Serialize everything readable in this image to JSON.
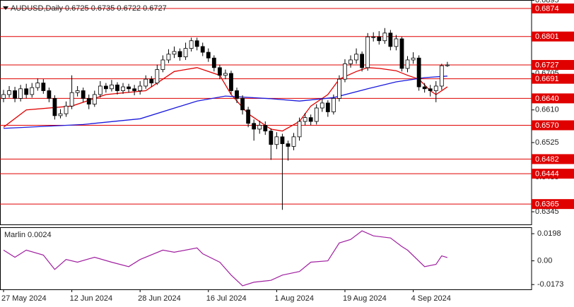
{
  "chart_data": [
    {
      "type": "candlestick",
      "title": "AUDUSD,Daily  0.6725 0.6735 0.6722 0.6727",
      "categories": [
        "27 May 2024",
        null,
        null,
        null,
        null,
        null,
        null,
        null,
        null,
        null,
        null,
        null,
        "12 Jun 2024",
        null,
        null,
        null,
        null,
        null,
        null,
        null,
        null,
        null,
        null,
        null,
        "28 Jun 2024",
        null,
        null,
        null,
        null,
        null,
        null,
        null,
        null,
        null,
        null,
        null,
        "16 Jul 2024",
        null,
        null,
        null,
        null,
        null,
        null,
        null,
        null,
        null,
        null,
        null,
        "1 Aug 2024",
        null,
        null,
        null,
        null,
        null,
        null,
        null,
        null,
        null,
        null,
        null,
        "19 Aug 2024",
        null,
        null,
        null,
        null,
        null,
        null,
        null,
        null,
        null,
        null,
        null,
        "4 Sep 2024",
        null,
        null,
        null,
        null,
        null,
        null
      ],
      "open": [
        0.664,
        0.665,
        0.666,
        0.664,
        0.6665,
        0.665,
        0.6668,
        0.668,
        0.666,
        0.664,
        0.6595,
        0.66,
        0.662,
        0.6655,
        0.666,
        0.664,
        0.6625,
        0.665,
        0.6672,
        0.6665,
        0.6675,
        0.666,
        0.667,
        0.6665,
        0.666,
        0.6672,
        0.669,
        0.668,
        0.6715,
        0.674,
        0.6755,
        0.6762,
        0.6748,
        0.677,
        0.679,
        0.6775,
        0.676,
        0.6745,
        0.672,
        0.67,
        0.6705,
        0.666,
        0.664,
        0.661,
        0.6575,
        0.656,
        0.657,
        0.6555,
        0.652,
        0.654,
        0.6522,
        0.6515,
        0.654,
        0.658,
        0.659,
        0.658,
        0.6615,
        0.6628,
        0.6605,
        0.664,
        0.669,
        0.673,
        0.674,
        0.6755,
        0.672,
        0.68,
        0.68,
        0.679,
        0.681,
        0.6775,
        0.6795,
        0.6718,
        0.674,
        0.6745,
        0.667,
        0.6665,
        0.666,
        0.6672,
        0.6725
      ],
      "high": [
        0.6662,
        0.6672,
        0.667,
        0.6675,
        0.6678,
        0.668,
        0.6692,
        0.669,
        0.6668,
        0.6648,
        0.6612,
        0.6632,
        0.67,
        0.6672,
        0.6668,
        0.665,
        0.666,
        0.6685,
        0.668,
        0.6688,
        0.6682,
        0.668,
        0.6678,
        0.6675,
        0.6685,
        0.67,
        0.6698,
        0.6728,
        0.6752,
        0.6768,
        0.6775,
        0.677,
        0.6785,
        0.6798,
        0.6798,
        0.6785,
        0.677,
        0.6752,
        0.6728,
        0.6715,
        0.6712,
        0.6668,
        0.6648,
        0.6618,
        0.6585,
        0.6582,
        0.658,
        0.6562,
        0.6552,
        0.6548,
        0.653,
        0.655,
        0.659,
        0.6602,
        0.6598,
        0.6625,
        0.664,
        0.6635,
        0.665,
        0.67,
        0.6742,
        0.6752,
        0.677,
        0.6762,
        0.681,
        0.6812,
        0.6815,
        0.6823,
        0.6818,
        0.6805,
        0.68,
        0.675,
        0.676,
        0.6752,
        0.668,
        0.6675,
        0.6685,
        0.673,
        0.6735
      ],
      "low": [
        0.663,
        0.6642,
        0.663,
        0.6632,
        0.664,
        0.6642,
        0.666,
        0.6652,
        0.663,
        0.6585,
        0.6588,
        0.6592,
        0.6612,
        0.6645,
        0.663,
        0.6612,
        0.6618,
        0.6642,
        0.6655,
        0.6658,
        0.665,
        0.6652,
        0.6655,
        0.6648,
        0.665,
        0.6665,
        0.667,
        0.6675,
        0.6708,
        0.6732,
        0.6745,
        0.6738,
        0.674,
        0.6762,
        0.6765,
        0.675,
        0.6735,
        0.671,
        0.669,
        0.669,
        0.665,
        0.6628,
        0.6598,
        0.6565,
        0.653,
        0.6548,
        0.6545,
        0.648,
        0.6508,
        0.635,
        0.6478,
        0.6505,
        0.653,
        0.657,
        0.657,
        0.6572,
        0.6605,
        0.6592,
        0.6598,
        0.6632,
        0.6682,
        0.672,
        0.673,
        0.671,
        0.6712,
        0.6788,
        0.678,
        0.6782,
        0.6765,
        0.6765,
        0.671,
        0.6708,
        0.673,
        0.666,
        0.6655,
        0.6645,
        0.663,
        0.6662,
        0.6722
      ],
      "close": [
        0.665,
        0.666,
        0.664,
        0.6665,
        0.665,
        0.6668,
        0.668,
        0.666,
        0.664,
        0.6595,
        0.66,
        0.662,
        0.6655,
        0.666,
        0.664,
        0.6625,
        0.665,
        0.6672,
        0.6665,
        0.6675,
        0.666,
        0.667,
        0.6665,
        0.666,
        0.6672,
        0.669,
        0.668,
        0.6715,
        0.674,
        0.6755,
        0.6762,
        0.6748,
        0.677,
        0.679,
        0.6775,
        0.676,
        0.6745,
        0.672,
        0.67,
        0.6705,
        0.666,
        0.664,
        0.661,
        0.6575,
        0.656,
        0.657,
        0.6555,
        0.652,
        0.654,
        0.6522,
        0.6515,
        0.654,
        0.658,
        0.659,
        0.658,
        0.6615,
        0.6628,
        0.6605,
        0.664,
        0.669,
        0.673,
        0.674,
        0.6755,
        0.672,
        0.68,
        0.68,
        0.679,
        0.681,
        0.6775,
        0.6795,
        0.6718,
        0.674,
        0.6745,
        0.667,
        0.6665,
        0.666,
        0.6672,
        0.6725,
        0.6727
      ],
      "up_color": "#ffffff",
      "down_color": "#000000",
      "lines": [
        {
          "color": "#e00000",
          "x": [
            0,
            4,
            12,
            18,
            25,
            30,
            34,
            38,
            40,
            43,
            47,
            49,
            52,
            54,
            57,
            59,
            62,
            64,
            66,
            69,
            71,
            73,
            75,
            76,
            78
          ],
          "values": [
            0.6565,
            0.661,
            0.662,
            0.665,
            0.666,
            0.671,
            0.672,
            0.67,
            0.665,
            0.66,
            0.656,
            0.6555,
            0.658,
            0.662,
            0.665,
            0.669,
            0.671,
            0.672,
            0.6718,
            0.6712,
            0.67,
            0.669,
            0.666,
            0.665,
            0.667
          ]
        },
        {
          "color": "#1a1adc",
          "x": [
            0,
            14,
            24,
            34,
            39,
            47,
            52,
            58,
            64,
            69,
            74,
            78
          ],
          "values": [
            0.6562,
            0.6572,
            0.6587,
            0.6633,
            0.6646,
            0.6639,
            0.6633,
            0.6642,
            0.6665,
            0.6683,
            0.6694,
            0.6698
          ]
        }
      ],
      "levels": [
        {
          "value": 0.6874,
          "label": "0.6874"
        },
        {
          "value": 0.6801,
          "label": "0.6801"
        },
        {
          "value": 0.6727,
          "label": "0.6727"
        },
        {
          "value": 0.6691,
          "label": "0.6691"
        },
        {
          "value": 0.664,
          "label": "0.6640"
        },
        {
          "value": 0.657,
          "label": "0.6570"
        },
        {
          "value": 0.6482,
          "label": "0.6482"
        },
        {
          "value": 0.6444,
          "label": "0.6444"
        },
        {
          "value": 0.6365,
          "label": "0.6365"
        }
      ],
      "level_color": "#e00000",
      "xlim": [
        -0.62,
        92.8
      ],
      "ylim": [
        0.6312,
        0.6896
      ],
      "yticks": [
        0.6895,
        0.6705,
        {
          "value": 0.661,
          "label": "0.6610"
        },
        0.6525,
        0.6435,
        0.6345
      ]
    },
    {
      "type": "line",
      "title": "Marlin 0.0024",
      "color": "#a020a0",
      "x": [
        0,
        2,
        4,
        7,
        9,
        11,
        13,
        16,
        19,
        22,
        24,
        28,
        30,
        34,
        35,
        38,
        40,
        42,
        44,
        47,
        49,
        52,
        54,
        57,
        59,
        61,
        63,
        65,
        68,
        70,
        71,
        74,
        76,
        77,
        78
      ],
      "values": [
        0.0078,
        0.0026,
        0.0078,
        0.0042,
        -0.0063,
        0.001,
        -0.001,
        0.0026,
        -0.001,
        -0.0042,
        0.001,
        0.0078,
        0.0063,
        0.0094,
        0.0052,
        -0.001,
        -0.0104,
        -0.0182,
        -0.0156,
        -0.0142,
        -0.0104,
        -0.0078,
        -0.001,
        0,
        0.013,
        0.0156,
        0.0219,
        0.0182,
        0.0167,
        0.0104,
        0.0078,
        -0.0042,
        -0.0026,
        0.0036,
        0.0024
      ],
      "xlim": [
        -0.62,
        92.8
      ],
      "ylim": [
        -0.0208,
        0.0245
      ],
      "yticks": [
        0.0198,
        {
          "value": 0,
          "label": "0.00"
        },
        -0.0173
      ]
    }
  ]
}
